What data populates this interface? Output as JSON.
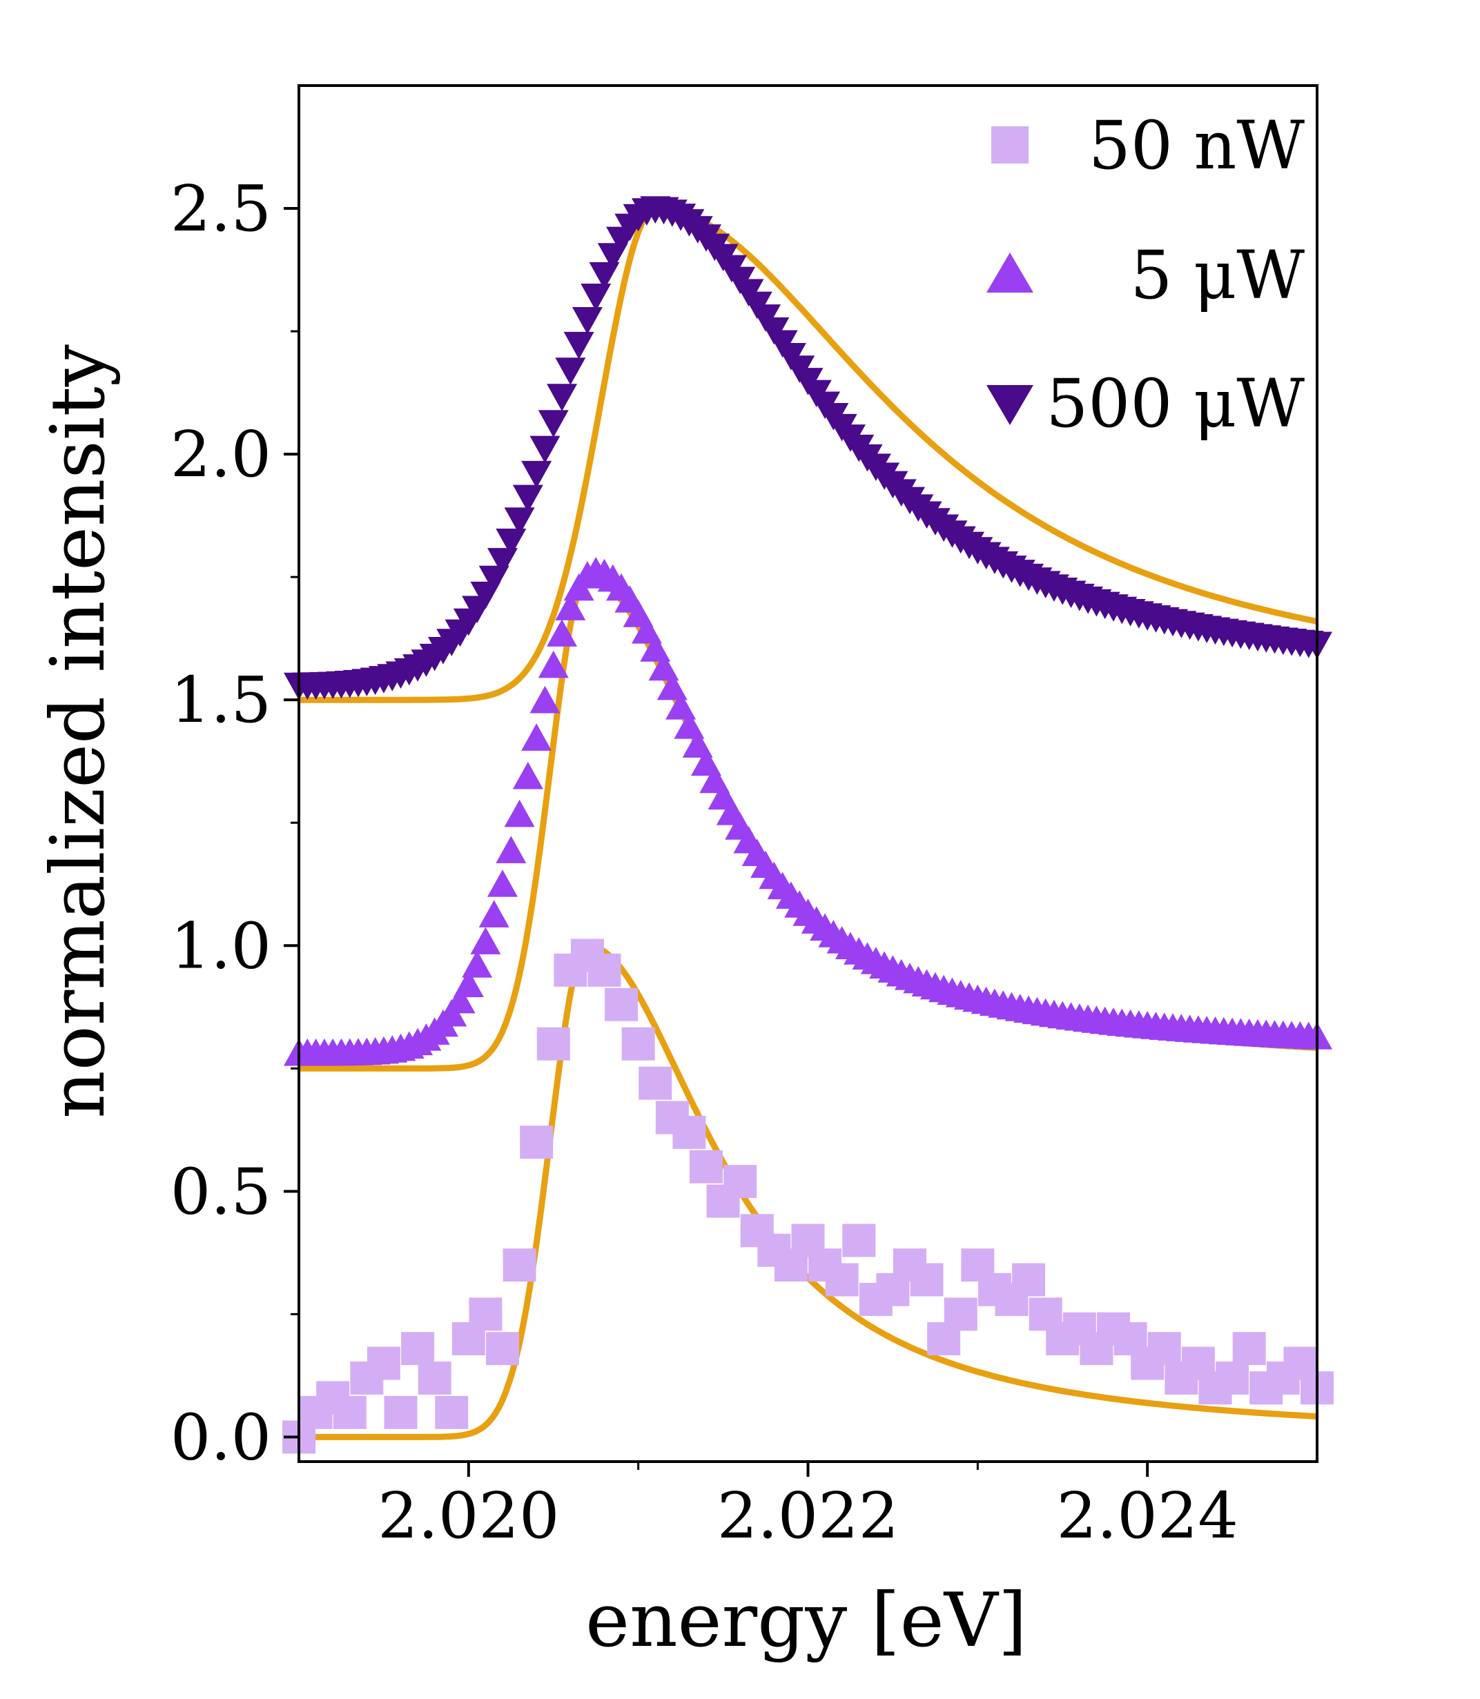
{
  "chart_data": {
    "type": "scatter",
    "xlabel": "energy [eV]",
    "ylabel": "normalized intensity",
    "xlim": [
      2.019,
      2.025
    ],
    "ylim": [
      -0.05,
      2.75
    ],
    "xticks": [
      2.02,
      2.022,
      2.024
    ],
    "xtick_labels": [
      "2.020",
      "2.022",
      "2.024"
    ],
    "yticks": [
      0.0,
      0.5,
      1.0,
      1.5,
      2.0,
      2.5
    ],
    "ytick_labels": [
      "0.0",
      "0.5",
      "1.0",
      "1.5",
      "2.0",
      "2.5"
    ],
    "grid": false,
    "legend_position": "top-right",
    "fit_color": "#E8A010",
    "series": [
      {
        "name": "50 nW",
        "marker": "square",
        "color": "#D4AEF5",
        "x": [
          2.019,
          2.0191,
          2.0192,
          2.0193,
          2.0194,
          2.0195,
          2.0196,
          2.0197,
          2.0198,
          2.0199,
          2.02,
          2.0201,
          2.0202,
          2.0203,
          2.0204,
          2.0205,
          2.0206,
          2.0207,
          2.0208,
          2.0209,
          2.021,
          2.0211,
          2.0212,
          2.0213,
          2.0214,
          2.0215,
          2.0216,
          2.0217,
          2.0218,
          2.0219,
          2.022,
          2.0221,
          2.0222,
          2.0223,
          2.0224,
          2.0225,
          2.0226,
          2.0227,
          2.0228,
          2.0229,
          2.023,
          2.0231,
          2.0232,
          2.0233,
          2.0234,
          2.0235,
          2.0236,
          2.0237,
          2.0238,
          2.0239,
          2.024,
          2.0241,
          2.0242,
          2.0243,
          2.0244,
          2.0245,
          2.0246,
          2.0247,
          2.0248,
          2.0249,
          2.025
        ],
        "y": [
          0.0,
          0.05,
          0.08,
          0.05,
          0.12,
          0.15,
          0.05,
          0.18,
          0.12,
          0.05,
          0.2,
          0.25,
          0.18,
          0.35,
          0.6,
          0.8,
          0.95,
          0.98,
          0.95,
          0.88,
          0.8,
          0.72,
          0.65,
          0.62,
          0.55,
          0.48,
          0.52,
          0.42,
          0.38,
          0.35,
          0.4,
          0.35,
          0.32,
          0.4,
          0.28,
          0.3,
          0.35,
          0.32,
          0.2,
          0.25,
          0.35,
          0.3,
          0.28,
          0.32,
          0.25,
          0.2,
          0.22,
          0.18,
          0.22,
          0.2,
          0.15,
          0.18,
          0.12,
          0.15,
          0.1,
          0.12,
          0.18,
          0.1,
          0.12,
          0.15,
          0.1
        ]
      },
      {
        "name": "5 μW",
        "marker": "triangle-up",
        "color": "#9A3FF2",
        "peak_energy": 2.02075,
        "peak_value": 1.76,
        "baseline": 0.78
      },
      {
        "name": "500 μW",
        "marker": "triangle-down",
        "color": "#4A0A8C",
        "peak_energy": 2.0211,
        "peak_value": 2.5,
        "baseline": 1.53
      }
    ],
    "fits": [
      {
        "peak_energy": 2.0207,
        "peak_value": 1.0,
        "baseline": 0.0
      },
      {
        "peak_energy": 2.0207,
        "peak_value": 1.75,
        "baseline": 0.75
      },
      {
        "peak_energy": 2.0211,
        "peak_value": 2.5,
        "baseline": 1.5
      }
    ]
  }
}
